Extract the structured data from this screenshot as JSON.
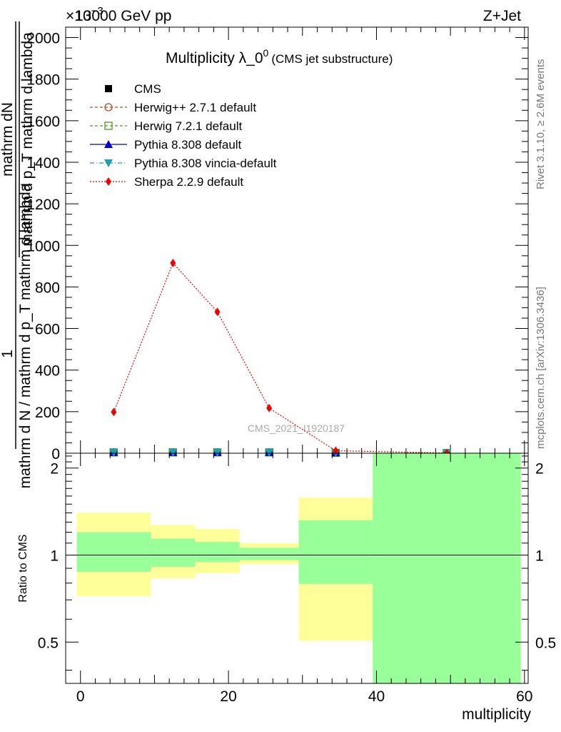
{
  "header": {
    "energy_label": "13000 GeV pp",
    "process_label": "Z+Jet",
    "scale_label": "×10",
    "scale_exp": "−3",
    "rivet_label": "Rivet 3.1.10, ≥ 2.6M events",
    "mcplots_label": "mcplots.cern.ch [arXiv:1306.3436]",
    "watermark": "CMS_2021_I1920187"
  },
  "chart_data": [
    {
      "type": "line",
      "title": "Multiplicity λ_0",
      "title_sup": "0",
      "subtitle": "(CMS jet substructure)",
      "ylabel_numerator": "1",
      "ylabel_fraction_top": "mathrm dN",
      "ylabel_fraction_bottom": "mathrm d p_T mathrm d lambda",
      "ylabel_denominator": "mathrm d N / mathrm d p_T mathrm d lambda",
      "xlim": [
        -2,
        60.5
      ],
      "ylim": [
        0,
        2050
      ],
      "yticks": [
        0,
        200,
        400,
        600,
        800,
        1000,
        1200,
        1400,
        1600,
        1800,
        2000
      ],
      "ytick_labels": [
        "0",
        "200",
        "400",
        "600",
        "800",
        "1000",
        "1200",
        "1400",
        "1600",
        "1800",
        "2000"
      ],
      "legend": [
        {
          "name": "CMS",
          "color": "#000000",
          "marker": "square-filled",
          "line": "none"
        },
        {
          "name": "Herwig++ 2.7.1 default",
          "color": "#a0522d",
          "marker": "circle-open",
          "line": "dashed"
        },
        {
          "name": "Herwig 7.2.1 default",
          "color": "#4a9a1f",
          "marker": "square-open",
          "line": "dashed"
        },
        {
          "name": "Pythia 8.308 default",
          "color": "#0000cc",
          "marker": "triangle-up",
          "line": "solid"
        },
        {
          "name": "Pythia 8.308 vincia-default",
          "color": "#1a9fb5",
          "marker": "triangle-down",
          "line": "dashdot"
        },
        {
          "name": "Sherpa 2.2.9 default",
          "color": "#ee0000",
          "marker": "diamond",
          "line": "dotted"
        }
      ],
      "cms_x": [
        4.5,
        12.5,
        18.5,
        25.5,
        34.5,
        49.5
      ],
      "cms_y": [
        4,
        4,
        4,
        4,
        2,
        1
      ],
      "series": [
        {
          "name": "Sherpa 2.2.9 default",
          "x": [
            4.5,
            12.5,
            18.5,
            25.5,
            34.5,
            49.5
          ],
          "y": [
            198,
            915,
            680,
            217,
            12,
            1
          ]
        }
      ]
    },
    {
      "type": "area",
      "ylabel": "Ratio to CMS",
      "xlabel": "multiplicity",
      "xlim": [
        -2,
        60.5
      ],
      "ylim": [
        0.36,
        2.25
      ],
      "xticks": [
        0,
        20,
        40,
        60
      ],
      "xtick_labels": [
        "0",
        "20",
        "40",
        "60"
      ],
      "yticks": [
        0.5,
        1,
        2
      ],
      "ytick_labels": [
        "0.5",
        "1",
        "2"
      ],
      "bin_edges": [
        -0.5,
        9.5,
        15.5,
        21.5,
        29.5,
        39.5,
        59.5
      ],
      "total_band_low": [
        0.72,
        0.83,
        0.865,
        0.93,
        0.505,
        0.0
      ],
      "total_band_high": [
        1.4,
        1.27,
        1.23,
        1.1,
        1.58,
        3.0
      ],
      "stat_band_low": [
        0.875,
        0.91,
        0.945,
        0.96,
        0.795,
        0.0
      ],
      "stat_band_high": [
        1.2,
        1.14,
        1.11,
        1.06,
        1.32,
        3.0
      ],
      "total_band_color": "#ffff99",
      "stat_band_color": "#99ff99"
    }
  ]
}
